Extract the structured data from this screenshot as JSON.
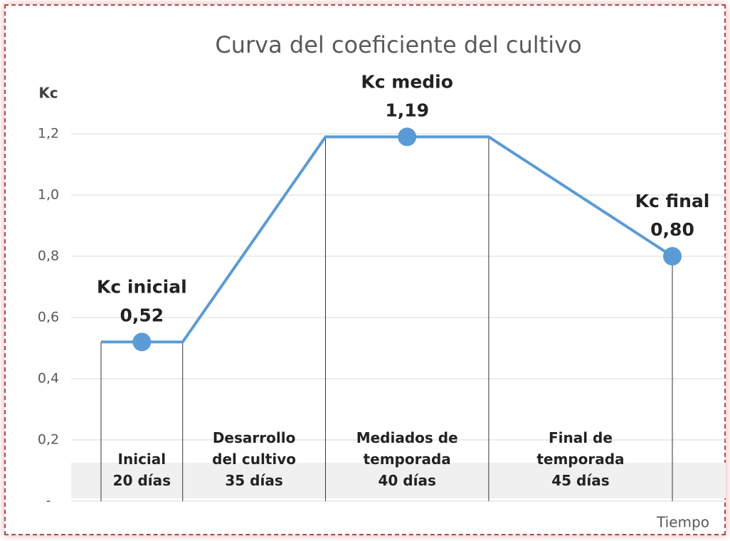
{
  "chart_data": {
    "type": "line",
    "title": "Curva del coeficiente del cultivo",
    "y_label": "Kc",
    "x_label": "Tiempo",
    "ylim": [
      0,
      1.2
    ],
    "yticks": [
      {
        "value": 0,
        "label": "-"
      },
      {
        "value": 0.2,
        "label": "0,2"
      },
      {
        "value": 0.4,
        "label": "0,4"
      },
      {
        "value": 0.6,
        "label": "0,6"
      },
      {
        "value": 0.8,
        "label": "0,8"
      },
      {
        "value": 1.0,
        "label": "1,0"
      },
      {
        "value": 1.2,
        "label": "1,2"
      }
    ],
    "grid": true,
    "series": [
      {
        "color": "#5b9bd5",
        "values": [
          0.52,
          0.52,
          1.19,
          1.19,
          0.8
        ]
      }
    ],
    "stages": [
      "Inicial",
      "Desarrollo del cultivo",
      "Mediados de temporada",
      "Final de temporada"
    ],
    "durations": [
      20,
      35,
      40,
      45
    ],
    "duration_labels": [
      "20 días",
      "35 días",
      "40 días",
      "45 días"
    ],
    "annotations": [
      {
        "label": "Kc inicial",
        "value": 0.52,
        "value_label": "0,52"
      },
      {
        "label": "Kc medio",
        "value": 1.19,
        "value_label": "1,19"
      },
      {
        "label": "Kc final",
        "value": 0.8,
        "value_label": "0,80"
      }
    ]
  }
}
